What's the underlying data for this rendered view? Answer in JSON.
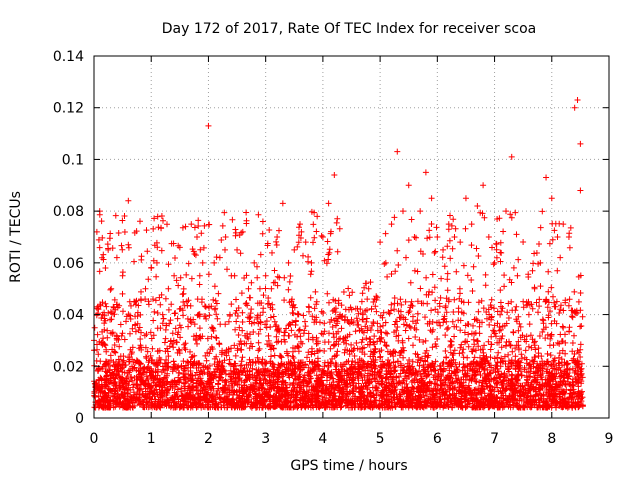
{
  "chart_data": {
    "type": "scatter",
    "title": "Day 172 of 2017, Rate Of TEC Index for receiver scoa",
    "xlabel": "GPS time / hours",
    "ylabel": "ROTI / TECUs",
    "xlim": [
      0,
      9
    ],
    "ylim": [
      0,
      0.14
    ],
    "xticks": [
      "0",
      "1",
      "2",
      "3",
      "4",
      "5",
      "6",
      "7",
      "8",
      "9"
    ],
    "yticks": [
      "0",
      "0.02",
      "0.04",
      "0.06",
      "0.08",
      "0.1",
      "0.12",
      "0.14"
    ],
    "grid": true,
    "marker": "+",
    "color": "#ff0000",
    "series": [
      {
        "values": [
          [
            0.0,
            0.03
          ],
          [
            0.05,
            0.072
          ],
          [
            0.1,
            0.08
          ],
          [
            0.15,
            0.04
          ],
          [
            0.2,
            0.058
          ],
          [
            0.3,
            0.05
          ],
          [
            0.4,
            0.062
          ],
          [
            0.5,
            0.055
          ],
          [
            0.6,
            0.084
          ],
          [
            0.6,
            0.067
          ],
          [
            0.7,
            0.045
          ],
          [
            0.8,
            0.035
          ],
          [
            0.9,
            0.05
          ],
          [
            1.0,
            0.058
          ],
          [
            1.1,
            0.06
          ],
          [
            1.2,
            0.04
          ],
          [
            1.3,
            0.05
          ],
          [
            1.4,
            0.055
          ],
          [
            1.5,
            0.066
          ],
          [
            1.6,
            0.074
          ],
          [
            1.7,
            0.075
          ],
          [
            1.8,
            0.07
          ],
          [
            1.9,
            0.06
          ],
          [
            2.0,
            0.113
          ],
          [
            2.1,
            0.06
          ],
          [
            2.2,
            0.062
          ],
          [
            2.3,
            0.07
          ],
          [
            2.4,
            0.055
          ],
          [
            2.5,
            0.065
          ],
          [
            2.6,
            0.072
          ],
          [
            2.7,
            0.05
          ],
          [
            2.8,
            0.06
          ],
          [
            2.9,
            0.05
          ],
          [
            3.0,
            0.055
          ],
          [
            3.1,
            0.05
          ],
          [
            3.2,
            0.07
          ],
          [
            3.3,
            0.083
          ],
          [
            3.4,
            0.06
          ],
          [
            3.5,
            0.065
          ],
          [
            3.6,
            0.075
          ],
          [
            3.7,
            0.068
          ],
          [
            3.8,
            0.06
          ],
          [
            3.9,
            0.078
          ],
          [
            4.0,
            0.07
          ],
          [
            4.1,
            0.083
          ],
          [
            4.2,
            0.094
          ],
          [
            4.3,
            0.04
          ],
          [
            4.4,
            0.042
          ],
          [
            4.5,
            0.038
          ],
          [
            4.6,
            0.036
          ],
          [
            4.7,
            0.04
          ],
          [
            4.8,
            0.05
          ],
          [
            4.9,
            0.046
          ],
          [
            5.0,
            0.068
          ],
          [
            5.1,
            0.06
          ],
          [
            5.2,
            0.075
          ],
          [
            5.3,
            0.103
          ],
          [
            5.4,
            0.08
          ],
          [
            5.5,
            0.09
          ],
          [
            5.6,
            0.07
          ],
          [
            5.7,
            0.08
          ],
          [
            5.8,
            0.095
          ],
          [
            5.9,
            0.085
          ],
          [
            6.0,
            0.07
          ],
          [
            6.1,
            0.065
          ],
          [
            6.2,
            0.075
          ],
          [
            6.3,
            0.07
          ],
          [
            6.4,
            0.068
          ],
          [
            6.5,
            0.085
          ],
          [
            6.6,
            0.075
          ],
          [
            6.7,
            0.082
          ],
          [
            6.8,
            0.09
          ],
          [
            6.9,
            0.07
          ],
          [
            7.0,
            0.06
          ],
          [
            7.1,
            0.064
          ],
          [
            7.2,
            0.08
          ],
          [
            7.3,
            0.101
          ],
          [
            7.4,
            0.055
          ],
          [
            7.5,
            0.045
          ],
          [
            7.6,
            0.04
          ],
          [
            7.7,
            0.05
          ],
          [
            7.8,
            0.06
          ],
          [
            7.9,
            0.093
          ],
          [
            8.0,
            0.085
          ],
          [
            8.1,
            0.07
          ],
          [
            8.2,
            0.075
          ],
          [
            8.3,
            0.07
          ],
          [
            8.4,
            0.12
          ],
          [
            8.45,
            0.123
          ],
          [
            8.5,
            0.106
          ],
          [
            8.5,
            0.088
          ]
        ]
      }
    ]
  }
}
